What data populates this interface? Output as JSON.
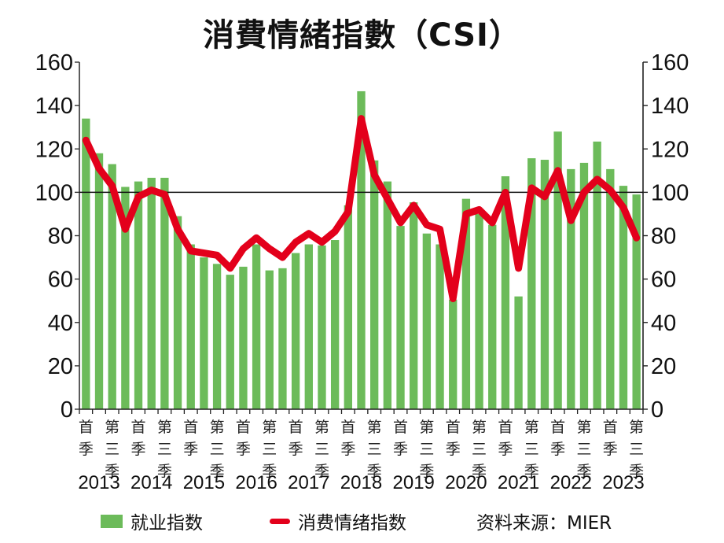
{
  "title": "消費情緒指數（CSI）",
  "chart_data": {
    "type": "bar+line",
    "title": "消費情緒指數（CSI）",
    "xlabel": "",
    "ylabel_left": "",
    "ylabel_right": "",
    "ylim": [
      0,
      160
    ],
    "yticks": [
      0,
      20,
      40,
      60,
      80,
      100,
      120,
      140,
      160
    ],
    "reference_line": 100,
    "grid": false,
    "legend_position": "bottom",
    "quarter_labels": [
      "首季",
      "第三季"
    ],
    "year_labels": [
      "2013",
      "2014",
      "2015",
      "2016",
      "2017",
      "2018",
      "2019",
      "2020",
      "2021",
      "2022",
      "2023"
    ],
    "categories": [
      "2013Q1",
      "2013Q2",
      "2013Q3",
      "2013Q4",
      "2014Q1",
      "2014Q2",
      "2014Q3",
      "2014Q4",
      "2015Q1",
      "2015Q2",
      "2015Q3",
      "2015Q4",
      "2016Q1",
      "2016Q2",
      "2016Q3",
      "2016Q4",
      "2017Q1",
      "2017Q2",
      "2017Q3",
      "2017Q4",
      "2018Q1",
      "2018Q2",
      "2018Q3",
      "2018Q4",
      "2019Q1",
      "2019Q2",
      "2019Q3",
      "2019Q4",
      "2020Q1",
      "2020Q2",
      "2020Q3",
      "2020Q4",
      "2021Q1",
      "2021Q2",
      "2021Q3",
      "2021Q4",
      "2022Q1",
      "2022Q2",
      "2022Q3",
      "2022Q4",
      "2023Q1",
      "2023Q2",
      "2023Q3"
    ],
    "series": [
      {
        "name": "就业指数",
        "type": "bar",
        "color": "#6cbb5a",
        "values": [
          134,
          118,
          113,
          102.5,
          105,
          106.7,
          106.7,
          89,
          76,
          70,
          67,
          62,
          65.7,
          76,
          64,
          65,
          72,
          76,
          75.5,
          78,
          94,
          146.6,
          114.7,
          105,
          84.5,
          95.4,
          81,
          76,
          50.5,
          97,
          90,
          85,
          107.4,
          52,
          115.7,
          115,
          128,
          110.7,
          113.6,
          123.4,
          110.7,
          103,
          99
        ]
      },
      {
        "name": "消费情绪指数",
        "type": "line",
        "color": "#e3001b",
        "values": [
          124,
          111,
          103,
          83,
          98,
          101,
          99,
          83,
          73,
          72,
          71,
          65,
          74,
          79,
          74,
          70,
          77,
          81,
          77,
          82,
          91,
          134,
          108,
          97,
          86,
          94,
          85,
          83,
          51,
          90,
          92,
          86,
          100,
          65,
          102,
          98,
          110,
          87,
          100,
          106,
          101,
          93,
          79
        ]
      }
    ],
    "source": "资料来源：MIER"
  },
  "legend": {
    "bar_label": "就业指数",
    "line_label": "消费情绪指数",
    "source_label": "资料来源：MIER"
  }
}
